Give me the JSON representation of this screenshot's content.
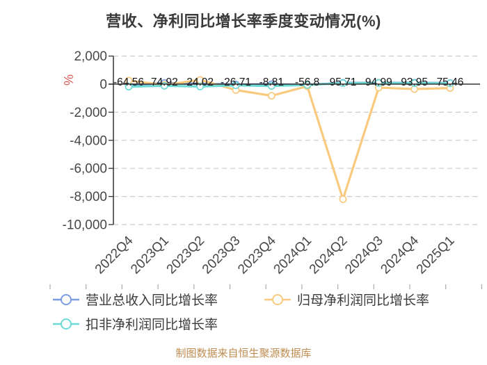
{
  "page": {
    "title": "营收、净利同比增长率季度变动情况(%)",
    "footer": "制图数据来自恒生聚源数据库"
  },
  "chart_data": {
    "type": "line",
    "title": "营收、净利同比增长率季度变动情况(%)",
    "y_axis_name": "%",
    "categories": [
      "2022Q4",
      "2023Q1",
      "2023Q2",
      "2023Q3",
      "2023Q4",
      "2024Q1",
      "2024Q2",
      "2024Q3",
      "2024Q4",
      "2025Q1"
    ],
    "y_tick_labels": [
      "2,000",
      "0",
      "-2,000",
      "-4,000",
      "-6,000",
      "-8,000",
      "-10,000"
    ],
    "y_tick_values": [
      2000,
      0,
      -2000,
      -4000,
      -6000,
      -8000,
      -10000
    ],
    "ylim": [
      -10000,
      2000
    ],
    "grid": "horizontal-dashed",
    "legend_position": "bottom",
    "series": [
      {
        "name": "营业总收入同比增长率",
        "color": "#7B9CE1",
        "values": [
          -64.56,
          74.92,
          24.02,
          -26.71,
          -8.81,
          -56.8,
          95.71,
          94.99,
          93.95,
          75.46
        ]
      },
      {
        "name": "归母净利润同比增长率",
        "color": "#F9C97E",
        "values": [
          250,
          -60,
          300,
          -420,
          -830,
          -150,
          -8195.71,
          -250,
          -350,
          -280
        ]
      },
      {
        "name": "扣非净利润同比增长率",
        "color": "#6CDBD5",
        "values": [
          -180,
          -120,
          -170,
          -90,
          -130,
          -60,
          70,
          80,
          70,
          60
        ]
      }
    ],
    "point_labels": [
      "-64.56",
      "74.92",
      "24.02",
      "-26.71",
      "-8.81",
      "-56.8",
      "95.71",
      "94.99",
      "93.95",
      "75.46"
    ]
  },
  "colors": {
    "title": "#3A3A3A",
    "axis_text": "#474747",
    "label_text": "#141414",
    "axis_line": "#333333",
    "grid_line": "#CCCCCC",
    "y_axis_name": "#DD5A5A",
    "footer": "#BE8C50",
    "background": "#FFFFFF"
  }
}
